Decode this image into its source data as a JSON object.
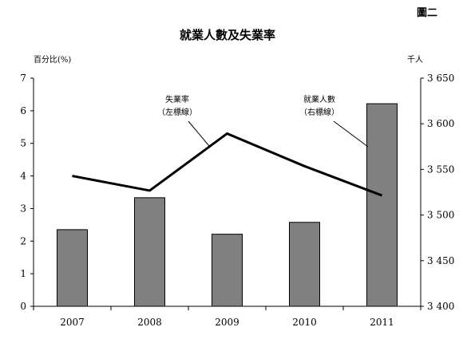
{
  "figure_label": "圖二",
  "chart_data": {
    "type": "bar",
    "title": "就業人數及失業率",
    "categories": [
      "2007",
      "2008",
      "2009",
      "2010",
      "2011"
    ],
    "left_axis": {
      "label": "百分比(%)",
      "ylim": [
        0,
        7
      ],
      "ticks": [
        "0",
        "1",
        "2",
        "3",
        "4",
        "5",
        "6",
        "7"
      ]
    },
    "right_axis": {
      "label": "千人",
      "ylim": [
        3400,
        3650
      ],
      "ticks": [
        "3 400",
        "3 450",
        "3 500",
        "3 550",
        "3 600",
        "3 650"
      ]
    },
    "series": [
      {
        "name": "就業人數",
        "type": "bar",
        "axis": "right",
        "values": [
          3484,
          3519,
          3479,
          3492,
          3622
        ],
        "color": "#808080"
      },
      {
        "name": "失業率",
        "type": "line",
        "axis": "left",
        "values": [
          4.0,
          3.55,
          5.3,
          4.3,
          3.4
        ],
        "color": "#000000"
      }
    ],
    "annotations": [
      {
        "series": "失業率",
        "lines": [
          "失業率",
          "（左標線）"
        ]
      },
      {
        "series": "就業人數",
        "lines": [
          "就業人數",
          "（右標線）"
        ]
      }
    ],
    "grid": false,
    "legend": "none"
  }
}
